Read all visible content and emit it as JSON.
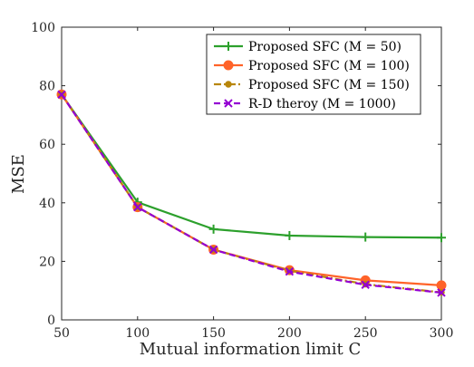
{
  "chart_data": {
    "type": "line",
    "title": "",
    "xlabel": "Mutual information limit C",
    "ylabel": "MSE",
    "xlim": [
      50,
      300
    ],
    "ylim": [
      0,
      100
    ],
    "xticks": [
      "50",
      "100",
      "150",
      "200",
      "250",
      "300"
    ],
    "yticks": [
      "0",
      "20",
      "40",
      "60",
      "80",
      "100"
    ],
    "grid": false,
    "legend_position": "top-right",
    "x": [
      50,
      100,
      150,
      200,
      250,
      300
    ],
    "series": [
      {
        "name": "Proposed SFC (M = 50)",
        "color": "#2ca02c",
        "marker": "plus",
        "dash": "solid",
        "values": [
          77,
          40.2,
          31,
          28.8,
          28.3,
          28.1
        ]
      },
      {
        "name": "Proposed SFC (M = 100)",
        "color": "#ff6329",
        "marker": "circle",
        "dash": "solid",
        "values": [
          77,
          38.5,
          24,
          17,
          13.5,
          11.8
        ]
      },
      {
        "name": "Proposed SFC (M = 150)",
        "color": "#b8860b",
        "marker": "dot",
        "dash": "dashdot",
        "values": [
          77,
          38.5,
          24,
          16.8,
          12.2,
          9.4
        ]
      },
      {
        "name": "R-D theroy (M = 1000)",
        "color": "#9400d3",
        "marker": "x",
        "dash": "dashed",
        "values": [
          77,
          38.5,
          24,
          16.5,
          12,
          9.3
        ]
      }
    ]
  }
}
